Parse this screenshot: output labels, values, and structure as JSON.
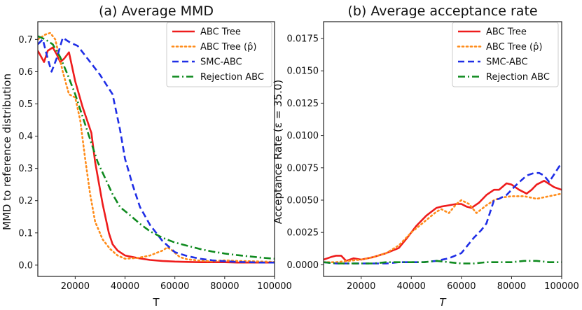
{
  "chart_data": [
    {
      "type": "line",
      "title": "(a) Average MMD",
      "xlabel": "T",
      "ylabel": "MMD to reference distribution",
      "xlim": [
        5000,
        100000
      ],
      "ylim": [
        -0.035,
        0.755
      ],
      "xticks": [
        20000,
        40000,
        60000,
        80000,
        100000
      ],
      "xtick_labels": [
        "20000",
        "40000",
        "60000",
        "80000",
        "100000"
      ],
      "yticks": [
        0.0,
        0.1,
        0.2,
        0.3,
        0.4,
        0.5,
        0.6,
        0.7
      ],
      "ytick_labels": [
        "0.0",
        "0.1",
        "0.2",
        "0.3",
        "0.4",
        "0.5",
        "0.6",
        "0.7"
      ],
      "legend_position": "top-right",
      "series": [
        {
          "name": "ABC Tree",
          "color": "#ee1c1c",
          "style": "solid",
          "x": [
            5000,
            7500,
            9000,
            11000,
            12500,
            14000,
            15500,
            17500,
            20000,
            23000,
            26500,
            28000,
            31000,
            33500,
            35000,
            37000,
            40000,
            45000,
            50000,
            55000,
            60000,
            65000,
            70000,
            75000,
            80000,
            85000,
            90000,
            95000,
            100000
          ],
          "y": [
            0.665,
            0.63,
            0.665,
            0.675,
            0.655,
            0.63,
            0.64,
            0.66,
            0.57,
            0.49,
            0.41,
            0.32,
            0.19,
            0.1,
            0.065,
            0.045,
            0.03,
            0.022,
            0.016,
            0.013,
            0.011,
            0.01,
            0.009,
            0.009,
            0.009,
            0.008,
            0.008,
            0.008,
            0.008
          ]
        },
        {
          "name": "ABC Tree ($\\hat{p}$)",
          "color": "#ff8c1a",
          "style": "dotted",
          "x": [
            5000,
            8000,
            10000,
            12000,
            15000,
            17500,
            20000,
            22000,
            24000,
            26000,
            28000,
            31000,
            34000,
            37000,
            40000,
            45000,
            50000,
            55000,
            57000,
            59000,
            62000,
            65000,
            70000,
            75000,
            80000,
            85000,
            90000,
            100000
          ],
          "y": [
            0.7,
            0.715,
            0.72,
            0.7,
            0.6,
            0.53,
            0.52,
            0.45,
            0.33,
            0.22,
            0.135,
            0.08,
            0.05,
            0.03,
            0.02,
            0.022,
            0.03,
            0.045,
            0.055,
            0.045,
            0.025,
            0.018,
            0.014,
            0.012,
            0.015,
            0.013,
            0.012,
            0.01
          ]
        },
        {
          "name": "SMC-ABC",
          "color": "#1f2ee6",
          "style": "dashed",
          "x": [
            5000,
            7000,
            9000,
            10500,
            12500,
            15000,
            18000,
            21000,
            25000,
            30000,
            35000,
            38000,
            40000,
            43000,
            46000,
            50000,
            55000,
            60000,
            65000,
            70000,
            75000,
            80000,
            85000,
            90000,
            95000,
            100000
          ],
          "y": [
            0.685,
            0.7,
            0.64,
            0.6,
            0.64,
            0.705,
            0.69,
            0.68,
            0.64,
            0.59,
            0.53,
            0.42,
            0.33,
            0.25,
            0.18,
            0.125,
            0.075,
            0.04,
            0.028,
            0.02,
            0.015,
            0.012,
            0.01,
            0.009,
            0.008,
            0.008
          ]
        },
        {
          "name": "Rejection ABC",
          "color": "#0f8a1f",
          "style": "dashdot",
          "x": [
            5000,
            8000,
            11000,
            14000,
            17000,
            20000,
            23000,
            26000,
            29000,
            32000,
            35000,
            38000,
            42000,
            46000,
            50000,
            55000,
            60000,
            65000,
            70000,
            75000,
            80000,
            85000,
            90000,
            95000,
            100000
          ],
          "y": [
            0.71,
            0.7,
            0.685,
            0.645,
            0.59,
            0.53,
            0.46,
            0.39,
            0.32,
            0.27,
            0.22,
            0.18,
            0.155,
            0.128,
            0.105,
            0.085,
            0.07,
            0.06,
            0.05,
            0.042,
            0.036,
            0.031,
            0.027,
            0.023,
            0.02
          ]
        }
      ]
    },
    {
      "type": "line",
      "title": "(b) Average acceptance rate",
      "xlabel": "T",
      "ylabel": "Acceptance Rate ($\\epsilon$ = 35.0)",
      "xlim": [
        5000,
        100000
      ],
      "ylim": [
        -0.0009,
        0.0188
      ],
      "xticks": [
        20000,
        40000,
        60000,
        80000,
        100000
      ],
      "xtick_labels": [
        "20000",
        "40000",
        "60000",
        "80000",
        "100000"
      ],
      "yticks": [
        0.0,
        0.0025,
        0.005,
        0.0075,
        0.01,
        0.0125,
        0.015,
        0.0175
      ],
      "ytick_labels": [
        "0.0000",
        "0.0025",
        "0.0050",
        "0.0075",
        "0.0100",
        "0.0125",
        "0.0150",
        "0.0175"
      ],
      "legend_position": "top-right",
      "series": [
        {
          "name": "ABC Tree",
          "color": "#ee1c1c",
          "style": "solid",
          "x": [
            5000,
            8000,
            10000,
            12000,
            14000,
            17000,
            20000,
            25000,
            30000,
            35000,
            38000,
            42000,
            46000,
            50000,
            52000,
            55000,
            58000,
            60000,
            62000,
            64000,
            67000,
            70000,
            73000,
            75000,
            78000,
            80000,
            83000,
            86000,
            88000,
            90000,
            93000,
            97000,
            100000
          ],
          "y": [
            0.0004,
            0.0006,
            0.0007,
            0.0007,
            0.0003,
            0.0005,
            0.0004,
            0.0006,
            0.0009,
            0.0013,
            0.002,
            0.003,
            0.0038,
            0.0044,
            0.0045,
            0.0046,
            0.0047,
            0.0047,
            0.0045,
            0.0044,
            0.0048,
            0.0054,
            0.0058,
            0.0058,
            0.0063,
            0.0062,
            0.0058,
            0.0055,
            0.0058,
            0.0062,
            0.0065,
            0.006,
            0.0058
          ]
        },
        {
          "name": "ABC Tree ($\\hat{p}$)",
          "color": "#ff8c1a",
          "style": "dotted",
          "x": [
            5000,
            10000,
            15000,
            20000,
            25000,
            30000,
            35000,
            40000,
            45000,
            50000,
            52000,
            55000,
            58000,
            60000,
            63000,
            66000,
            70000,
            73000,
            76000,
            80000,
            85000,
            90000,
            95000,
            100000
          ],
          "y": [
            0.0002,
            0.0002,
            0.0003,
            0.0004,
            0.0006,
            0.0009,
            0.0015,
            0.0025,
            0.0033,
            0.0041,
            0.0043,
            0.004,
            0.0047,
            0.005,
            0.0047,
            0.004,
            0.0046,
            0.005,
            0.0052,
            0.0053,
            0.0053,
            0.0051,
            0.0053,
            0.0055
          ]
        },
        {
          "name": "SMC-ABC",
          "color": "#1f2ee6",
          "style": "dashed",
          "x": [
            5000,
            10000,
            15000,
            20000,
            25000,
            30000,
            35000,
            40000,
            45000,
            50000,
            55000,
            60000,
            65000,
            68000,
            70000,
            73000,
            75000,
            78000,
            82000,
            86000,
            89000,
            91000,
            93000,
            95000,
            97000,
            100000
          ],
          "y": [
            0.0002,
            0.0001,
            0.0001,
            0.0001,
            0.0001,
            0.0001,
            0.0002,
            0.0002,
            0.0002,
            0.0003,
            0.0005,
            0.0009,
            0.0021,
            0.0027,
            0.0032,
            0.005,
            0.0051,
            0.0054,
            0.0062,
            0.0069,
            0.0071,
            0.0071,
            0.0069,
            0.0064,
            0.007,
            0.0079
          ]
        },
        {
          "name": "Rejection ABC",
          "color": "#0f8a1f",
          "style": "dashdot",
          "x": [
            5000,
            10000,
            15000,
            20000,
            25000,
            30000,
            35000,
            40000,
            45000,
            50000,
            55000,
            60000,
            65000,
            70000,
            75000,
            80000,
            85000,
            90000,
            95000,
            100000
          ],
          "y": [
            0.0002,
            0.0001,
            0.0001,
            0.0001,
            0.0001,
            0.0002,
            0.0002,
            0.0002,
            0.0002,
            0.0003,
            0.0002,
            0.0001,
            0.0001,
            0.0002,
            0.0002,
            0.0002,
            0.0003,
            0.0003,
            0.0002,
            0.0002
          ]
        }
      ]
    }
  ]
}
